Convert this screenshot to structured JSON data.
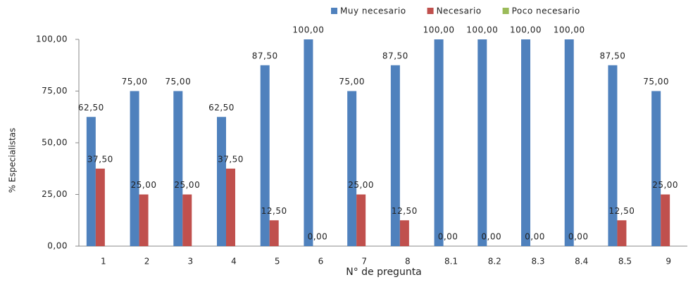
{
  "chart_data": {
    "type": "bar",
    "y_label": "% Especialistas",
    "x_label": "N° de pregunta",
    "categories": [
      "1",
      "2",
      "3",
      "4",
      "5",
      "6",
      "7",
      "8",
      "8.1",
      "8.2",
      "8.3",
      "8.4",
      "8.5",
      "9"
    ],
    "series": [
      {
        "name": "Muy necesario",
        "color": "#4f81bd",
        "values": [
          62.5,
          75,
          75,
          62.5,
          87.5,
          100,
          75,
          87.5,
          100,
          100,
          100,
          100,
          87.5,
          75
        ],
        "value_labels": [
          "62,50",
          "75,00",
          "75,00",
          "62,50",
          "87,50",
          "100,00",
          "75,00",
          "87,50",
          "100,00",
          "100,00",
          "100,00",
          "100,00",
          "87,50",
          "75,00"
        ]
      },
      {
        "name": "Necesario",
        "color": "#c0504d",
        "values": [
          37.5,
          25,
          25,
          37.5,
          12.5,
          0,
          25,
          12.5,
          0,
          0,
          0,
          0,
          12.5,
          25
        ],
        "value_labels": [
          "37,50",
          "25,00",
          "25,00",
          "37,50",
          "12,50",
          "0,00",
          "25,00",
          "12,50",
          "0,00",
          "0,00",
          "0,00",
          "0,00",
          "12,50",
          "25,00"
        ]
      },
      {
        "name": "Poco necesario",
        "color": "#9bbb59",
        "values": [
          0,
          0,
          0,
          0,
          0,
          0,
          0,
          0,
          0,
          0,
          0,
          0,
          0,
          0
        ]
      }
    ],
    "ylim": [
      0,
      100
    ],
    "yticks": [
      {
        "value": 0,
        "label": "0,00"
      },
      {
        "value": 25,
        "label": "25,00"
      },
      {
        "value": 50,
        "label": "50,00"
      },
      {
        "value": 75,
        "label": "75,00"
      },
      {
        "value": 100,
        "label": "100,00"
      }
    ],
    "grid": false,
    "legend": "top"
  }
}
